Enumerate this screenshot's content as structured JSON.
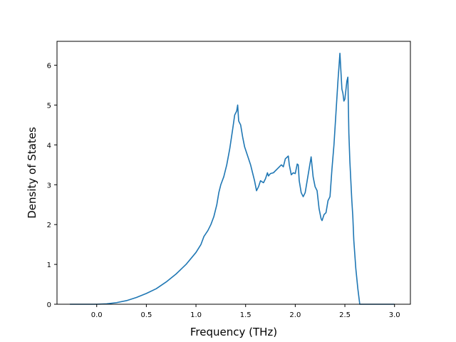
{
  "chart_data": {
    "type": "line",
    "title": "",
    "xlabel": "Frequency (THz)",
    "ylabel": "Density of States",
    "xlim": [
      -0.4,
      3.16
    ],
    "ylim": [
      0,
      6.6
    ],
    "grid": false,
    "xticks": [
      0.0,
      0.5,
      1.0,
      1.5,
      2.0,
      2.5,
      3.0
    ],
    "xtick_labels": [
      "0.0",
      "0.5",
      "1.0",
      "1.5",
      "2.0",
      "2.5",
      "3.0"
    ],
    "yticks": [
      0,
      1,
      2,
      3,
      4,
      5,
      6
    ],
    "ytick_labels": [
      "0",
      "1",
      "2",
      "3",
      "4",
      "5",
      "6"
    ],
    "color": "#1f77b4",
    "series": [
      {
        "x": [
          -0.27,
          0.0,
          0.1,
          0.2,
          0.3,
          0.4,
          0.5,
          0.6,
          0.7,
          0.8,
          0.9,
          1.0,
          1.05,
          1.08,
          1.12,
          1.15,
          1.18,
          1.21,
          1.23,
          1.25,
          1.28,
          1.31,
          1.34,
          1.37,
          1.39,
          1.41,
          1.42,
          1.43,
          1.45,
          1.47,
          1.49,
          1.51,
          1.53,
          1.55,
          1.57,
          1.59,
          1.61,
          1.63,
          1.65,
          1.68,
          1.7,
          1.72,
          1.73,
          1.75,
          1.78,
          1.82,
          1.86,
          1.88,
          1.9,
          1.93,
          1.94,
          1.96,
          1.98,
          2.0,
          2.02,
          2.03,
          2.04,
          2.06,
          2.08,
          2.1,
          2.12,
          2.14,
          2.16,
          2.18,
          2.2,
          2.22,
          2.24,
          2.26,
          2.27,
          2.29,
          2.31,
          2.33,
          2.35,
          2.37,
          2.39,
          2.41,
          2.43,
          2.45,
          2.47,
          2.48,
          2.49,
          2.5,
          2.52,
          2.53,
          2.54,
          2.55,
          2.56,
          2.57,
          2.58,
          2.59,
          2.61,
          2.63,
          2.65,
          2.67,
          2.69,
          2.71,
          2.73,
          2.74,
          2.8,
          2.9,
          3.0
        ],
        "y": [
          0.0,
          0.0,
          0.01,
          0.04,
          0.09,
          0.17,
          0.27,
          0.39,
          0.56,
          0.76,
          1.0,
          1.3,
          1.5,
          1.7,
          1.85,
          2.0,
          2.2,
          2.5,
          2.8,
          3.0,
          3.2,
          3.5,
          3.9,
          4.4,
          4.75,
          4.85,
          5.0,
          4.6,
          4.5,
          4.2,
          3.95,
          3.8,
          3.65,
          3.5,
          3.3,
          3.1,
          2.85,
          2.95,
          3.1,
          3.05,
          3.15,
          3.3,
          3.22,
          3.28,
          3.3,
          3.4,
          3.5,
          3.45,
          3.65,
          3.72,
          3.5,
          3.25,
          3.3,
          3.28,
          3.52,
          3.5,
          3.1,
          2.8,
          2.7,
          2.8,
          3.1,
          3.4,
          3.7,
          3.2,
          2.95,
          2.85,
          2.4,
          2.15,
          2.1,
          2.25,
          2.3,
          2.6,
          2.7,
          3.4,
          4.0,
          4.8,
          5.6,
          6.3,
          5.4,
          5.3,
          5.1,
          5.15,
          5.6,
          5.7,
          4.3,
          3.6,
          3.1,
          2.6,
          2.2,
          1.6,
          0.9,
          0.4,
          0.0,
          0.0,
          0.0,
          0.0,
          0.0,
          0.0,
          0.0,
          0.0,
          0.0
        ]
      }
    ]
  }
}
